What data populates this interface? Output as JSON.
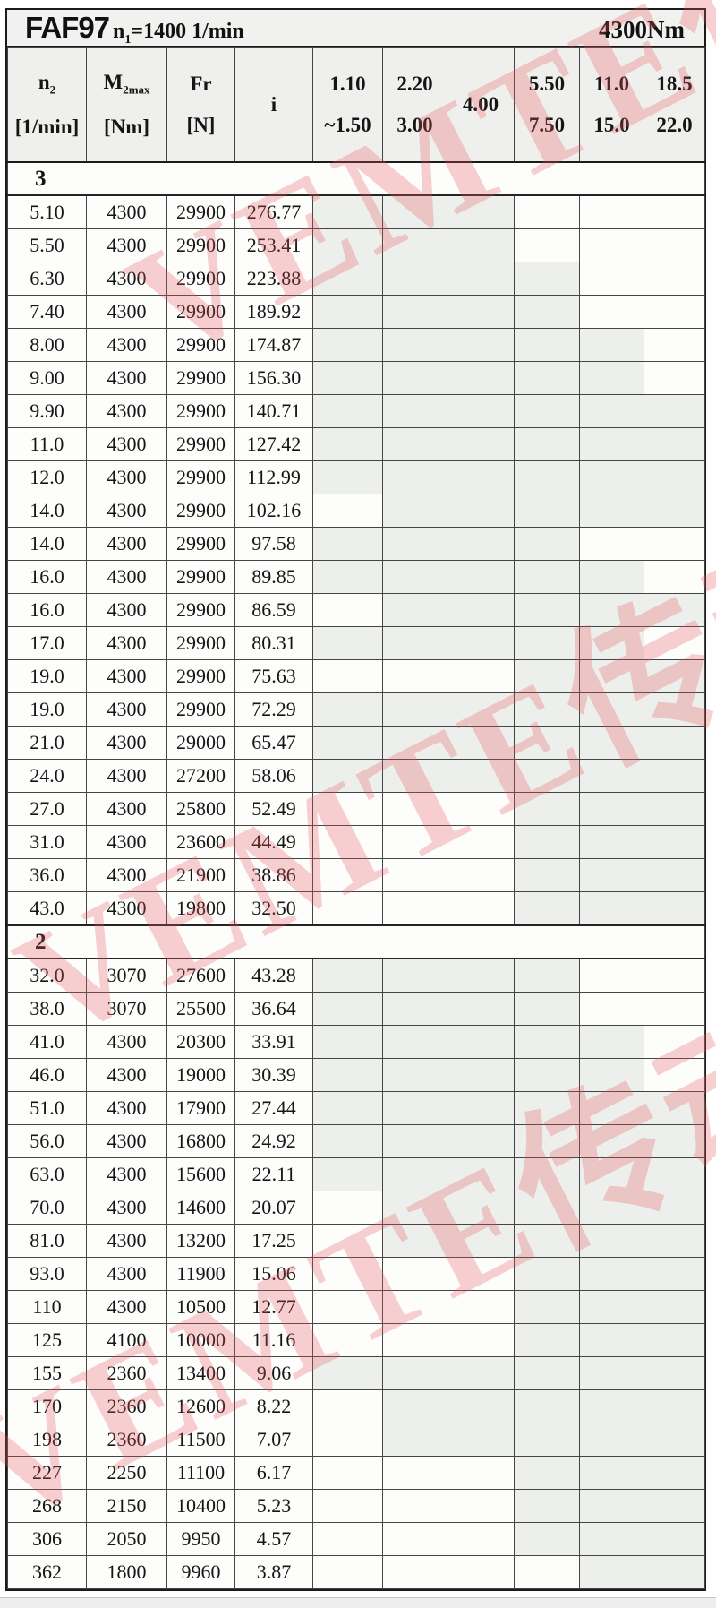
{
  "header": {
    "model": "FAF97",
    "speed_symbol": "n",
    "speed_subscript": "1",
    "speed_value": "=1400 1/min",
    "torque": "4300Nm"
  },
  "columns": {
    "data": [
      {
        "main": "n",
        "sub": "2",
        "unit": "[1/min]"
      },
      {
        "main": "M",
        "sub": "2max",
        "unit": "[Nm]"
      },
      {
        "main": "Fr",
        "sub": "",
        "unit": "[N]"
      },
      {
        "main": "i",
        "sub": "",
        "unit": ""
      }
    ],
    "ratio_ranges": [
      {
        "top": "1.10",
        "bottom": "~1.50"
      },
      {
        "top": "2.20",
        "bottom": "3.00"
      },
      {
        "top": "4.00",
        "bottom": ""
      },
      {
        "top": "5.50",
        "bottom": "7.50"
      },
      {
        "top": "11.0",
        "bottom": "15.0"
      },
      {
        "top": "18.5",
        "bottom": "22.0"
      }
    ]
  },
  "colors": {
    "shaded_cell": "#ecefec",
    "header_bg": "#eff0ed",
    "watermark_pink": "#e8555c"
  },
  "watermark": {
    "text": "VEMTE传动"
  },
  "sections": [
    {
      "label": "3",
      "rows": [
        {
          "n2": "5.10",
          "m2max": "4300",
          "fr": "29900",
          "i": "276.77",
          "shaded": [
            1,
            1,
            1,
            0,
            0,
            0
          ]
        },
        {
          "n2": "5.50",
          "m2max": "4300",
          "fr": "29900",
          "i": "253.41",
          "shaded": [
            1,
            1,
            1,
            0,
            0,
            0
          ]
        },
        {
          "n2": "6.30",
          "m2max": "4300",
          "fr": "29900",
          "i": "223.88",
          "shaded": [
            1,
            1,
            1,
            1,
            0,
            0
          ]
        },
        {
          "n2": "7.40",
          "m2max": "4300",
          "fr": "29900",
          "i": "189.92",
          "shaded": [
            1,
            1,
            1,
            1,
            0,
            0
          ]
        },
        {
          "n2": "8.00",
          "m2max": "4300",
          "fr": "29900",
          "i": "174.87",
          "shaded": [
            1,
            1,
            1,
            1,
            1,
            0
          ]
        },
        {
          "n2": "9.00",
          "m2max": "4300",
          "fr": "29900",
          "i": "156.30",
          "shaded": [
            1,
            1,
            1,
            1,
            1,
            0
          ]
        },
        {
          "n2": "9.90",
          "m2max": "4300",
          "fr": "29900",
          "i": "140.71",
          "shaded": [
            1,
            1,
            1,
            1,
            1,
            1
          ]
        },
        {
          "n2": "11.0",
          "m2max": "4300",
          "fr": "29900",
          "i": "127.42",
          "shaded": [
            1,
            1,
            1,
            1,
            1,
            1
          ]
        },
        {
          "n2": "12.0",
          "m2max": "4300",
          "fr": "29900",
          "i": "112.99",
          "shaded": [
            1,
            1,
            1,
            1,
            1,
            1
          ]
        },
        {
          "n2": "14.0",
          "m2max": "4300",
          "fr": "29900",
          "i": "102.16",
          "shaded": [
            0,
            1,
            1,
            1,
            1,
            1
          ]
        },
        {
          "n2": "14.0",
          "m2max": "4300",
          "fr": "29900",
          "i": "97.58",
          "shaded": [
            1,
            1,
            1,
            1,
            0,
            0
          ]
        },
        {
          "n2": "16.0",
          "m2max": "4300",
          "fr": "29900",
          "i": "89.85",
          "shaded": [
            1,
            1,
            1,
            1,
            1,
            0
          ]
        },
        {
          "n2": "16.0",
          "m2max": "4300",
          "fr": "29900",
          "i": "86.59",
          "shaded": [
            0,
            1,
            1,
            1,
            1,
            1
          ]
        },
        {
          "n2": "17.0",
          "m2max": "4300",
          "fr": "29900",
          "i": "80.31",
          "shaded": [
            1,
            1,
            1,
            1,
            1,
            0
          ]
        },
        {
          "n2": "19.0",
          "m2max": "4300",
          "fr": "29900",
          "i": "75.63",
          "shaded": [
            0,
            0,
            0,
            1,
            1,
            1
          ]
        },
        {
          "n2": "19.0",
          "m2max": "4300",
          "fr": "29900",
          "i": "72.29",
          "shaded": [
            1,
            1,
            1,
            1,
            1,
            1
          ]
        },
        {
          "n2": "21.0",
          "m2max": "4300",
          "fr": "29000",
          "i": "65.47",
          "shaded": [
            1,
            1,
            1,
            1,
            1,
            1
          ]
        },
        {
          "n2": "24.0",
          "m2max": "4300",
          "fr": "27200",
          "i": "58.06",
          "shaded": [
            1,
            1,
            1,
            1,
            1,
            1
          ]
        },
        {
          "n2": "27.0",
          "m2max": "4300",
          "fr": "25800",
          "i": "52.49",
          "shaded": [
            0,
            0,
            0,
            1,
            1,
            1
          ]
        },
        {
          "n2": "31.0",
          "m2max": "4300",
          "fr": "23600",
          "i": "44.49",
          "shaded": [
            0,
            0,
            0,
            1,
            1,
            1
          ]
        },
        {
          "n2": "36.0",
          "m2max": "4300",
          "fr": "21900",
          "i": "38.86",
          "shaded": [
            0,
            0,
            0,
            1,
            1,
            1
          ]
        },
        {
          "n2": "43.0",
          "m2max": "4300",
          "fr": "19800",
          "i": "32.50",
          "shaded": [
            0,
            0,
            0,
            1,
            1,
            1
          ]
        }
      ]
    },
    {
      "label": "2",
      "rows": [
        {
          "n2": "32.0",
          "m2max": "3070",
          "fr": "27600",
          "i": "43.28",
          "shaded": [
            1,
            1,
            1,
            1,
            0,
            0
          ]
        },
        {
          "n2": "38.0",
          "m2max": "3070",
          "fr": "25500",
          "i": "36.64",
          "shaded": [
            1,
            1,
            1,
            1,
            0,
            0
          ]
        },
        {
          "n2": "41.0",
          "m2max": "4300",
          "fr": "20300",
          "i": "33.91",
          "shaded": [
            1,
            1,
            1,
            1,
            1,
            0
          ]
        },
        {
          "n2": "46.0",
          "m2max": "4300",
          "fr": "19000",
          "i": "30.39",
          "shaded": [
            1,
            1,
            1,
            1,
            1,
            0
          ]
        },
        {
          "n2": "51.0",
          "m2max": "4300",
          "fr": "17900",
          "i": "27.44",
          "shaded": [
            1,
            1,
            1,
            1,
            1,
            1
          ]
        },
        {
          "n2": "56.0",
          "m2max": "4300",
          "fr": "16800",
          "i": "24.92",
          "shaded": [
            1,
            1,
            1,
            1,
            1,
            1
          ]
        },
        {
          "n2": "63.0",
          "m2max": "4300",
          "fr": "15600",
          "i": "22.11",
          "shaded": [
            1,
            1,
            1,
            1,
            1,
            1
          ]
        },
        {
          "n2": "70.0",
          "m2max": "4300",
          "fr": "14600",
          "i": "20.07",
          "shaded": [
            0,
            1,
            1,
            1,
            1,
            1
          ]
        },
        {
          "n2": "81.0",
          "m2max": "4300",
          "fr": "13200",
          "i": "17.25",
          "shaded": [
            0,
            1,
            1,
            1,
            1,
            1
          ]
        },
        {
          "n2": "93.0",
          "m2max": "4300",
          "fr": "11900",
          "i": "15.06",
          "shaded": [
            0,
            0,
            0,
            1,
            1,
            1
          ]
        },
        {
          "n2": "110",
          "m2max": "4300",
          "fr": "10500",
          "i": "12.77",
          "shaded": [
            0,
            0,
            0,
            1,
            1,
            1
          ]
        },
        {
          "n2": "125",
          "m2max": "4100",
          "fr": "10000",
          "i": "11.16",
          "shaded": [
            0,
            0,
            0,
            1,
            1,
            1
          ]
        },
        {
          "n2": "155",
          "m2max": "2360",
          "fr": "13400",
          "i": "9.06",
          "shaded": [
            1,
            1,
            1,
            1,
            1,
            1
          ]
        },
        {
          "n2": "170",
          "m2max": "2360",
          "fr": "12600",
          "i": "8.22",
          "shaded": [
            0,
            1,
            1,
            1,
            1,
            1
          ]
        },
        {
          "n2": "198",
          "m2max": "2360",
          "fr": "11500",
          "i": "7.07",
          "shaded": [
            0,
            1,
            1,
            1,
            1,
            1
          ]
        },
        {
          "n2": "227",
          "m2max": "2250",
          "fr": "11100",
          "i": "6.17",
          "shaded": [
            0,
            0,
            0,
            1,
            1,
            1
          ]
        },
        {
          "n2": "268",
          "m2max": "2150",
          "fr": "10400",
          "i": "5.23",
          "shaded": [
            0,
            0,
            0,
            1,
            1,
            1
          ]
        },
        {
          "n2": "306",
          "m2max": "2050",
          "fr": "9950",
          "i": "4.57",
          "shaded": [
            0,
            0,
            0,
            1,
            1,
            1
          ]
        },
        {
          "n2": "362",
          "m2max": "1800",
          "fr": "9960",
          "i": "3.87",
          "shaded": [
            0,
            0,
            0,
            0,
            1,
            1
          ]
        }
      ]
    }
  ]
}
